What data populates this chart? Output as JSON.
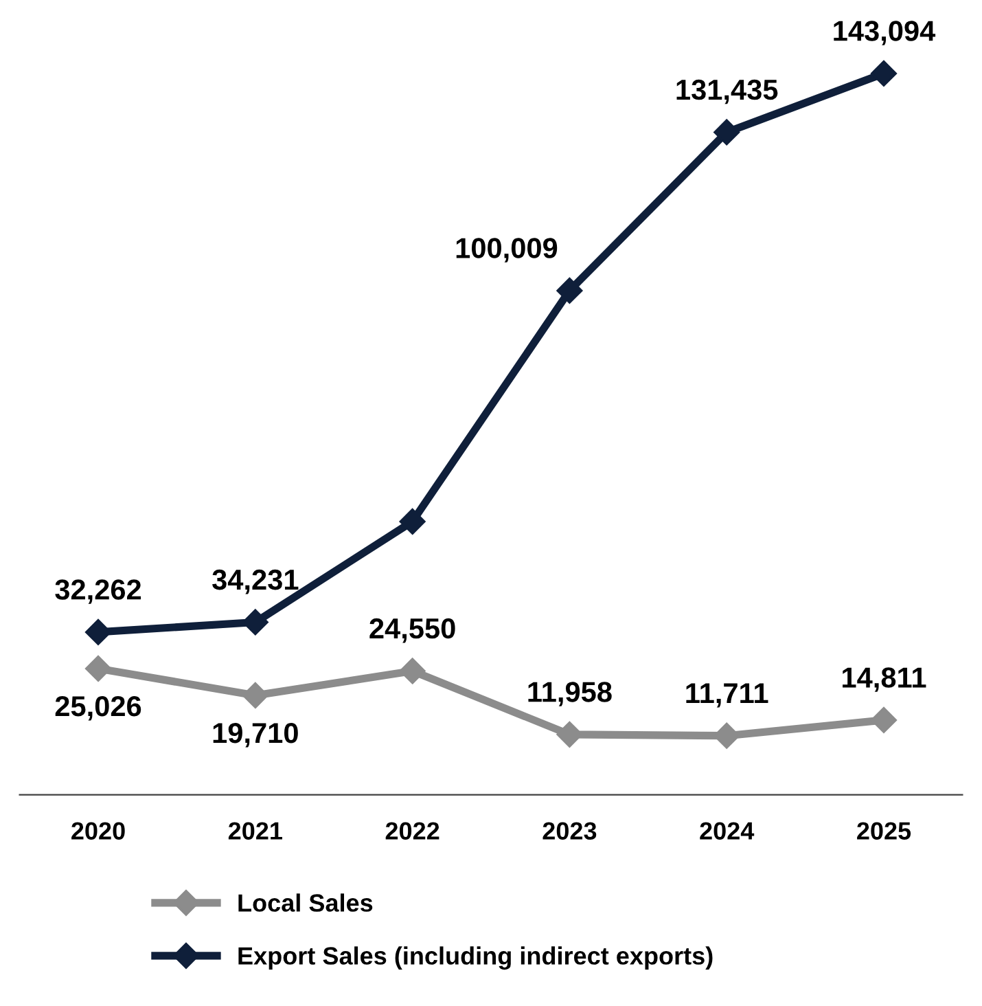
{
  "chart_data": {
    "type": "line",
    "categories": [
      "2020",
      "2021",
      "2022",
      "2023",
      "2024",
      "2025"
    ],
    "series": [
      {
        "name": "Local Sales",
        "color": "#8c8c8c",
        "values": [
          25026,
          19710,
          24550,
          11958,
          11711,
          14811
        ],
        "value_labels": [
          "25,026",
          "19,710",
          "24,550",
          "11,958",
          "11,711",
          "14,811"
        ]
      },
      {
        "name": "Export Sales (including indirect exports)",
        "color": "#0f1f3a",
        "values": [
          32262,
          34231,
          54200,
          100009,
          131435,
          143094
        ],
        "value_labels": [
          "32,262",
          "34,231",
          null,
          "100,009",
          "131,435",
          "143,094"
        ]
      }
    ],
    "tick_labels": "x",
    "grid": false,
    "legend": "bottom",
    "marker": "diamond",
    "line_style": "solid"
  }
}
